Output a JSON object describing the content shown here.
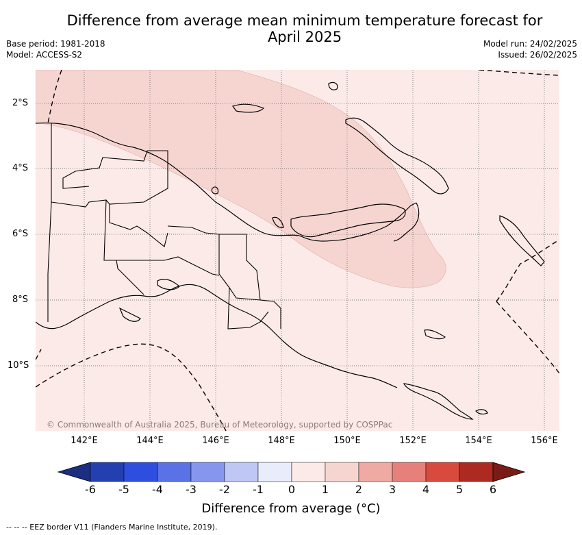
{
  "title_line1": "Difference from average mean minimum temperature forecast for",
  "title_line2": "April 2025",
  "base_period": "Base period: 1981-2018",
  "model": "Model: ACCESS-S2",
  "model_run": "Model run: 24/02/2025",
  "issued": "Issued: 26/02/2025",
  "credit": "© Commonwealth of Australia 2025, Bureau of Meteorology, supported by COSPPac",
  "lat_labels": [
    "2°S",
    "4°S",
    "6°S",
    "8°S",
    "10°S"
  ],
  "lon_labels": [
    "142°E",
    "144°E",
    "146°E",
    "148°E",
    "150°E",
    "152°E",
    "154°E",
    "156°E"
  ],
  "colorbar": {
    "ticks": [
      "-6",
      "-5",
      "-4",
      "-3",
      "-2",
      "-1",
      "0",
      "1",
      "2",
      "3",
      "4",
      "5",
      "6"
    ],
    "colors": [
      "#1b2e80",
      "#2440b0",
      "#2e4ee0",
      "#5a72e6",
      "#8696ee",
      "#bfc8f5",
      "#e8ecfb",
      "#fbeae8",
      "#f6d5d1",
      "#efaaa4",
      "#e5807a",
      "#d94a3e",
      "#ad2a22",
      "#7a1c16"
    ],
    "title": "Difference from average (°C)"
  },
  "map_colors": {
    "zone_0_1": "#fbeae8",
    "zone_1_2": "#f6d5d1"
  },
  "footnote": "--  --  -- EEZ border V11 (Flanders Marine Institute, 2019)."
}
